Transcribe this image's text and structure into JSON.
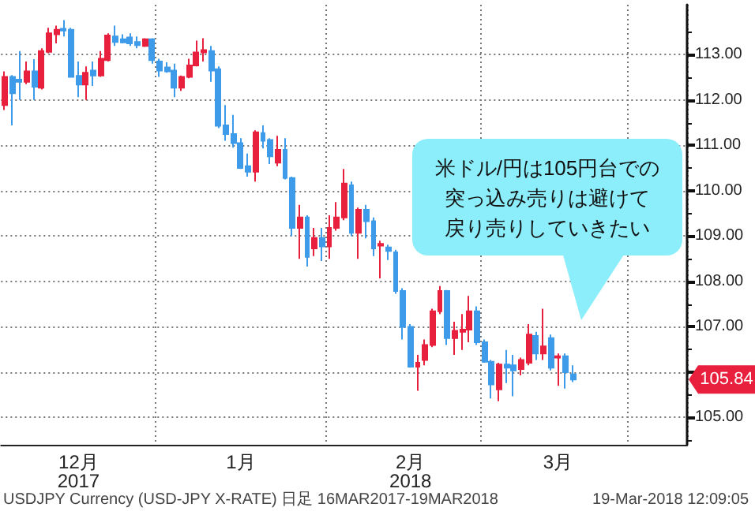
{
  "chart_data": {
    "type": "candlestick",
    "categories": [
      null,
      null,
      null,
      null,
      null,
      null,
      null,
      null,
      null,
      null,
      "12月\n2017",
      null,
      null,
      null,
      null,
      null,
      null,
      null,
      null,
      null,
      null,
      null,
      null,
      null,
      null,
      null,
      null,
      null,
      null,
      null,
      null,
      null,
      "1月",
      null,
      null,
      null,
      null,
      null,
      null,
      null,
      null,
      null,
      null,
      null,
      null,
      null,
      null,
      null,
      null,
      null,
      null,
      null,
      null,
      null,
      null,
      "2月\n2018",
      null,
      null,
      null,
      null,
      null,
      null,
      null,
      null,
      null,
      null,
      null,
      null,
      null,
      null,
      null,
      null,
      null,
      null,
      null,
      "3月",
      null,
      null,
      null,
      null,
      null,
      null,
      null,
      null,
      null,
      null,
      null,
      null,
      null,
      null,
      null,
      null,
      null
    ],
    "ohlc": [
      [
        111.89,
        112.63,
        111.78,
        112.51
      ],
      [
        112.51,
        112.55,
        111.44,
        112.15
      ],
      [
        112.45,
        113.08,
        112.0,
        112.4
      ],
      [
        112.4,
        112.85,
        112.35,
        112.63
      ],
      [
        112.63,
        112.9,
        112.0,
        112.29
      ],
      [
        112.27,
        113.14,
        112.23,
        113.08
      ],
      [
        113.06,
        113.59,
        113.03,
        113.47
      ],
      [
        113.45,
        113.64,
        113.25,
        113.55
      ],
      [
        113.57,
        113.76,
        113.4,
        113.53
      ],
      [
        113.55,
        113.59,
        112.49,
        112.51
      ],
      [
        112.53,
        112.85,
        112.06,
        112.34
      ],
      [
        112.34,
        112.74,
        112.0,
        112.6
      ],
      [
        112.65,
        112.85,
        112.31,
        112.54
      ],
      [
        112.54,
        113.08,
        112.51,
        112.91
      ],
      [
        112.88,
        113.47,
        112.85,
        113.42
      ],
      [
        113.4,
        113.64,
        113.19,
        113.28
      ],
      [
        113.34,
        113.45,
        113.25,
        113.27
      ],
      [
        113.38,
        113.47,
        113.19,
        113.25
      ],
      [
        113.28,
        113.4,
        113.14,
        113.21
      ],
      [
        113.19,
        113.36,
        113.17,
        113.34
      ],
      [
        113.34,
        113.36,
        112.8,
        112.88
      ],
      [
        112.85,
        112.91,
        112.51,
        112.65
      ],
      [
        112.72,
        112.83,
        112.6,
        112.63
      ],
      [
        112.65,
        112.8,
        112.06,
        112.27
      ],
      [
        112.27,
        112.54,
        112.2,
        112.51
      ],
      [
        112.51,
        112.91,
        112.48,
        112.76
      ],
      [
        112.76,
        113.31,
        112.74,
        113.05
      ],
      [
        113.05,
        113.36,
        112.85,
        113.1
      ],
      [
        113.08,
        113.19,
        112.4,
        112.65
      ],
      [
        112.68,
        112.74,
        111.38,
        111.43
      ],
      [
        111.44,
        111.89,
        111.1,
        111.25
      ],
      [
        111.25,
        111.67,
        110.95,
        111.05
      ],
      [
        111.05,
        111.16,
        110.48,
        110.5
      ],
      [
        110.54,
        110.82,
        110.31,
        110.42
      ],
      [
        110.42,
        111.33,
        110.2,
        111.29
      ],
      [
        111.27,
        111.44,
        110.93,
        111.1
      ],
      [
        111.12,
        111.16,
        110.59,
        110.76
      ],
      [
        110.62,
        111.21,
        110.54,
        110.9
      ],
      [
        110.9,
        111.16,
        110.25,
        110.28
      ],
      [
        110.28,
        110.31,
        109.0,
        109.18
      ],
      [
        109.18,
        109.69,
        108.5,
        109.41
      ],
      [
        109.41,
        109.46,
        108.33,
        108.54
      ],
      [
        108.73,
        109.18,
        108.56,
        108.96
      ],
      [
        108.96,
        109.18,
        108.45,
        108.77
      ],
      [
        108.77,
        109.46,
        108.5,
        109.18
      ],
      [
        109.18,
        109.75,
        109.12,
        109.41
      ],
      [
        109.41,
        110.48,
        109.35,
        110.16
      ],
      [
        110.12,
        110.2,
        109.0,
        109.07
      ],
      [
        109.07,
        109.63,
        108.5,
        109.58
      ],
      [
        109.58,
        109.69,
        108.95,
        109.33
      ],
      [
        109.33,
        109.41,
        108.56,
        108.73
      ],
      [
        108.79,
        108.9,
        108.07,
        108.83
      ],
      [
        108.75,
        108.81,
        108.47,
        108.67
      ],
      [
        108.64,
        108.7,
        107.73,
        107.79
      ],
      [
        107.79,
        107.85,
        106.72,
        107.0
      ],
      [
        107.0,
        107.06,
        106.1,
        106.12
      ],
      [
        106.12,
        106.38,
        105.59,
        106.21
      ],
      [
        106.27,
        106.72,
        106.15,
        106.6
      ],
      [
        106.6,
        107.4,
        106.55,
        107.34
      ],
      [
        107.34,
        107.9,
        107.28,
        107.79
      ],
      [
        107.79,
        107.81,
        106.6,
        106.75
      ],
      [
        106.75,
        107.11,
        106.38,
        106.91
      ],
      [
        106.89,
        107.28,
        106.49,
        106.94
      ],
      [
        106.94,
        107.68,
        106.66,
        107.34
      ],
      [
        107.34,
        107.45,
        106.6,
        106.66
      ],
      [
        106.66,
        106.72,
        106.21,
        106.23
      ],
      [
        106.23,
        106.27,
        105.42,
        105.73
      ],
      [
        105.62,
        106.21,
        105.36,
        106.17
      ],
      [
        106.17,
        106.49,
        105.76,
        106.1
      ],
      [
        106.15,
        106.38,
        105.47,
        106.04
      ],
      [
        106.07,
        106.32,
        105.93,
        106.27
      ],
      [
        106.21,
        107.06,
        106.15,
        106.83
      ],
      [
        106.8,
        106.89,
        106.27,
        106.41
      ],
      [
        106.41,
        107.4,
        106.27,
        106.57
      ],
      [
        106.75,
        106.83,
        106.04,
        106.1
      ],
      [
        106.32,
        106.41,
        105.7,
        106.35
      ],
      [
        106.35,
        106.41,
        105.64,
        106.0
      ],
      [
        105.95,
        106.15,
        105.78,
        105.84
      ],
      null,
      null,
      null,
      null,
      null,
      null,
      null,
      null,
      null,
      null,
      null,
      null,
      null,
      null,
      null
    ],
    "colors": [
      "#e8203e",
      "#3d9be9",
      "#3d9be9",
      "#e8203e",
      "#3d9be9",
      "#e8203e",
      "#e8203e",
      "#e8203e",
      "#3d9be9",
      "#3d9be9",
      "#3d9be9",
      "#e8203e",
      "#3d9be9",
      "#e8203e",
      "#e8203e",
      "#3d9be9",
      "#3d9be9",
      "#3d9be9",
      "#3d9be9",
      "#e8203e",
      "#3d9be9",
      "#3d9be9",
      "#3d9be9",
      "#3d9be9",
      "#e8203e",
      "#e8203e",
      "#e8203e",
      "#e8203e",
      "#3d9be9",
      "#3d9be9",
      "#3d9be9",
      "#3d9be9",
      "#3d9be9",
      "#3d9be9",
      "#e8203e",
      "#3d9be9",
      "#3d9be9",
      "#e8203e",
      "#3d9be9",
      "#3d9be9",
      "#e8203e",
      "#3d9be9",
      "#e8203e",
      "#3d9be9",
      "#e8203e",
      "#e8203e",
      "#e8203e",
      "#3d9be9",
      "#e8203e",
      "#3d9be9",
      "#3d9be9",
      "#e8203e",
      "#3d9be9",
      "#3d9be9",
      "#3d9be9",
      "#3d9be9",
      "#e8203e",
      "#e8203e",
      "#e8203e",
      "#e8203e",
      "#3d9be9",
      "#e8203e",
      "#e8203e",
      "#e8203e",
      "#3d9be9",
      "#3d9be9",
      "#3d9be9",
      "#e8203e",
      "#3d9be9",
      "#3d9be9",
      "#e8203e",
      "#e8203e",
      "#3d9be9",
      "#e8203e",
      "#3d9be9",
      "#e8203e",
      "#3d9be9",
      "#3d9be9",
      null,
      null,
      null,
      null,
      null,
      null,
      null,
      null,
      null,
      null,
      null,
      null,
      null,
      null,
      null
    ],
    "ylim": [
      104.4,
      114.1
    ],
    "yticks": [
      {
        "value": 105,
        "label": "105.00"
      },
      {
        "value": 106,
        "label": null
      },
      {
        "value": 107,
        "label": "107.00"
      },
      {
        "value": 108,
        "label": "108.00"
      },
      {
        "value": 109,
        "label": "109.00"
      },
      {
        "value": 110,
        "label": "110.00"
      },
      {
        "value": 111,
        "label": "111.00"
      },
      {
        "value": 112,
        "label": "112.00"
      },
      {
        "value": 113,
        "label": "113.00"
      }
    ],
    "grid": true,
    "annotations": [
      "米ドル/円は105円台での突っ込み売りは避けて戻り売りしていきたい",
      "105.84",
      "USDJPY Currency (USD-JPY X-RATE) 日足 16MAR2017-19MAR2018",
      "19-Mar-2018 12:09:05"
    ]
  }
}
